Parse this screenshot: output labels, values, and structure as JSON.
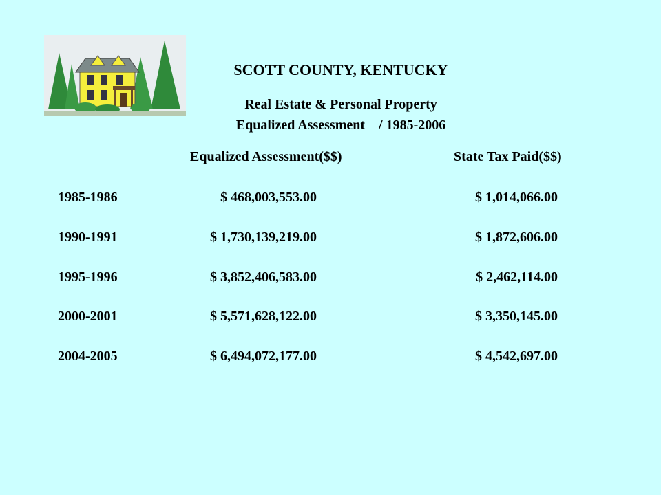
{
  "title": "SCOTT COUNTY, KENTUCKY",
  "subtitle_line1": "Real Estate & Personal Property",
  "subtitle_line2": "Equalized Assessment    / 1985-2006",
  "headers": {
    "assessment": "Equalized Assessment($$)",
    "tax": "State Tax Paid($$)"
  },
  "rows": [
    {
      "year": "1985-1986",
      "assessment": "$ 468,003,553.00",
      "tax": "$ 1,014,066.00"
    },
    {
      "year": "1990-1991",
      "assessment": "$ 1,730,139,219.00",
      "tax": "$ 1,872,606.00"
    },
    {
      "year": "1995-1996",
      "assessment": "$ 3,852,406,583.00",
      "tax": "$ 2,462,114.00"
    },
    {
      "year": "2000-2001",
      "assessment": "$ 5,571,628,122.00",
      "tax": "$ 3,350,145.00"
    },
    {
      "year": "2004-2005",
      "assessment": "$ 6,494,072,177.00",
      "tax": "$ 4,542,697.00"
    }
  ],
  "logo": {
    "icon": "house-with-trees-icon"
  },
  "colors": {
    "background": "#ccffff",
    "house": "#f5ee3c",
    "trees": "#2f8a3a",
    "text": "#000000"
  }
}
